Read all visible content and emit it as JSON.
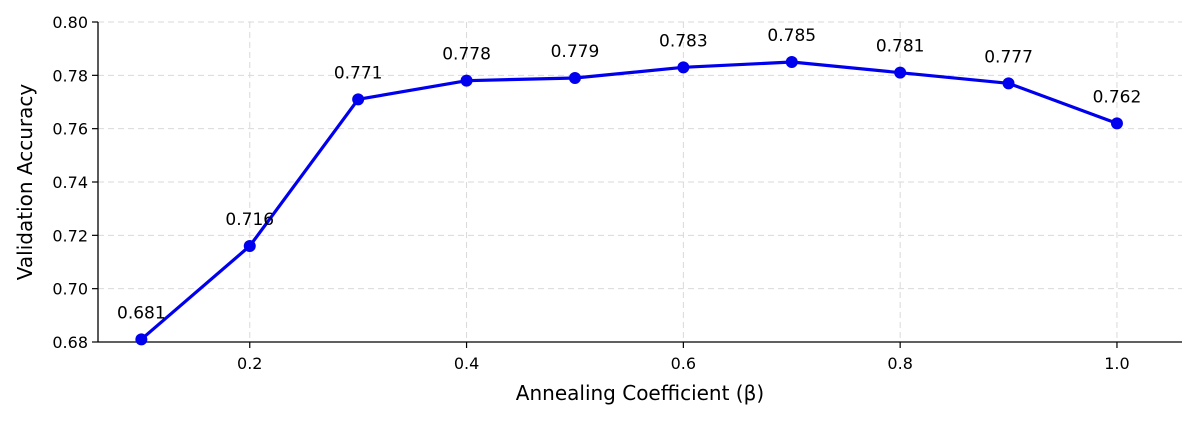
{
  "chart_data": {
    "type": "line",
    "xlabel": "Annealing Coefficient (β)",
    "ylabel": "Validation Accuracy",
    "x": [
      0.1,
      0.2,
      0.3,
      0.4,
      0.5,
      0.6,
      0.7,
      0.8,
      0.9,
      1.0
    ],
    "series": [
      {
        "values": [
          0.681,
          0.716,
          0.771,
          0.778,
          0.779,
          0.783,
          0.785,
          0.781,
          0.777,
          0.762
        ],
        "labels": [
          "0.681",
          "0.716",
          "0.771",
          "0.778",
          "0.779",
          "0.783",
          "0.785",
          "0.781",
          "0.777",
          "0.762"
        ],
        "color": "#0000ee"
      }
    ],
    "xlim": [
      0.06,
      1.06
    ],
    "ylim": [
      0.68,
      0.8
    ],
    "xticks": [
      0.2,
      0.4,
      0.6,
      0.8,
      1.0
    ],
    "xtick_labels": [
      "0.2",
      "0.4",
      "0.6",
      "0.8",
      "1.0"
    ],
    "yticks": [
      0.68,
      0.7,
      0.72,
      0.74,
      0.76,
      0.78,
      0.8
    ],
    "ytick_labels": [
      "0.68",
      "0.70",
      "0.72",
      "0.74",
      "0.76",
      "0.78",
      "0.80"
    ],
    "grid": true,
    "legend": "none"
  }
}
